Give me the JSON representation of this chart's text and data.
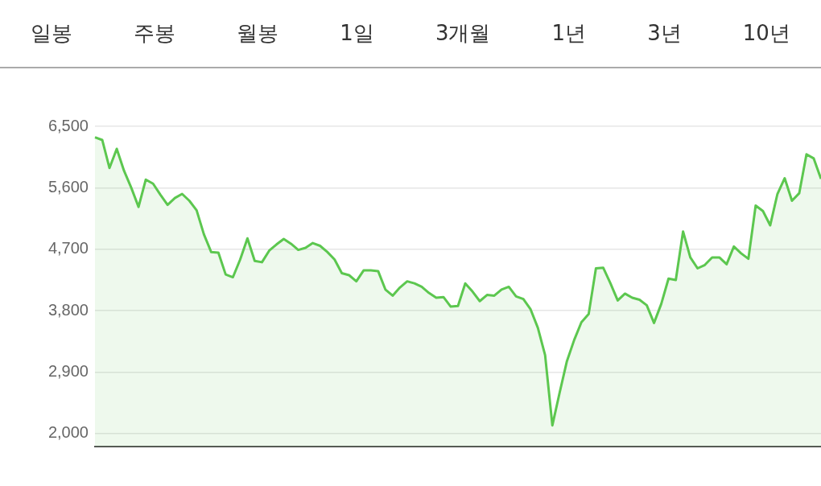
{
  "chart_data": {
    "type": "area",
    "annotations": [
      "일봉",
      "주봉",
      "월봉",
      "1일",
      "3개월",
      "1년",
      "3년",
      "10년"
    ],
    "categories": [
      null,
      null,
      null,
      null,
      null,
      null,
      null,
      null,
      null,
      null,
      null,
      null,
      null,
      null,
      null,
      null,
      null,
      null,
      null,
      null,
      null,
      null,
      null,
      null,
      null,
      null,
      null,
      null,
      null,
      null,
      null,
      null,
      null,
      null,
      null,
      null,
      null,
      null,
      null,
      null,
      null,
      null,
      null,
      null,
      null,
      null,
      null,
      null,
      null,
      null,
      null,
      null,
      null,
      null,
      null,
      null,
      null,
      null,
      null,
      null,
      null,
      null,
      null,
      null,
      null,
      null,
      null,
      null,
      null,
      null,
      null,
      null,
      null,
      null,
      null,
      null,
      null,
      null,
      null,
      null,
      null,
      null,
      null,
      null,
      null,
      null,
      null,
      null,
      null,
      null,
      null,
      null,
      null,
      null,
      null,
      null,
      null,
      null,
      null,
      null,
      null
    ],
    "series": [
      {
        "color": "#5cc74f",
        "values": [
          6340,
          6300,
          5890,
          6170,
          5850,
          5600,
          5320,
          5720,
          5660,
          5500,
          5350,
          5450,
          5510,
          5410,
          5270,
          4920,
          4660,
          4650,
          4330,
          4290,
          4550,
          4860,
          4530,
          4510,
          4680,
          4770,
          4850,
          4780,
          4690,
          4720,
          4790,
          4750,
          4660,
          4550,
          4350,
          4320,
          4230,
          4390,
          4390,
          4380,
          4110,
          4020,
          4140,
          4230,
          4200,
          4150,
          4060,
          3990,
          4000,
          3860,
          3870,
          4200,
          4080,
          3940,
          4030,
          4020,
          4110,
          4150,
          4010,
          3970,
          3820,
          3550,
          3150,
          2120,
          2600,
          3060,
          3370,
          3630,
          3750,
          4420,
          4430,
          4200,
          3950,
          4050,
          3990,
          3960,
          3880,
          3620,
          3900,
          4270,
          4250,
          4960,
          4580,
          4420,
          4470,
          4580,
          4580,
          4480,
          4740,
          4640,
          4560,
          5340,
          5260,
          5050,
          5510,
          5740,
          5410,
          5520,
          6090,
          6030,
          5730
        ]
      }
    ],
    "ylim": [
      1810,
      6500
    ],
    "yticks": [
      {
        "value": 2000,
        "label": "2,000"
      },
      {
        "value": 2900,
        "label": "2,900"
      },
      {
        "value": 3800,
        "label": "3,800"
      },
      {
        "value": 4700,
        "label": "4,700"
      },
      {
        "value": 5600,
        "label": "5,600"
      },
      {
        "value": 6500,
        "label": "6,500"
      }
    ],
    "grid": "y",
    "tick_labels": "y"
  }
}
